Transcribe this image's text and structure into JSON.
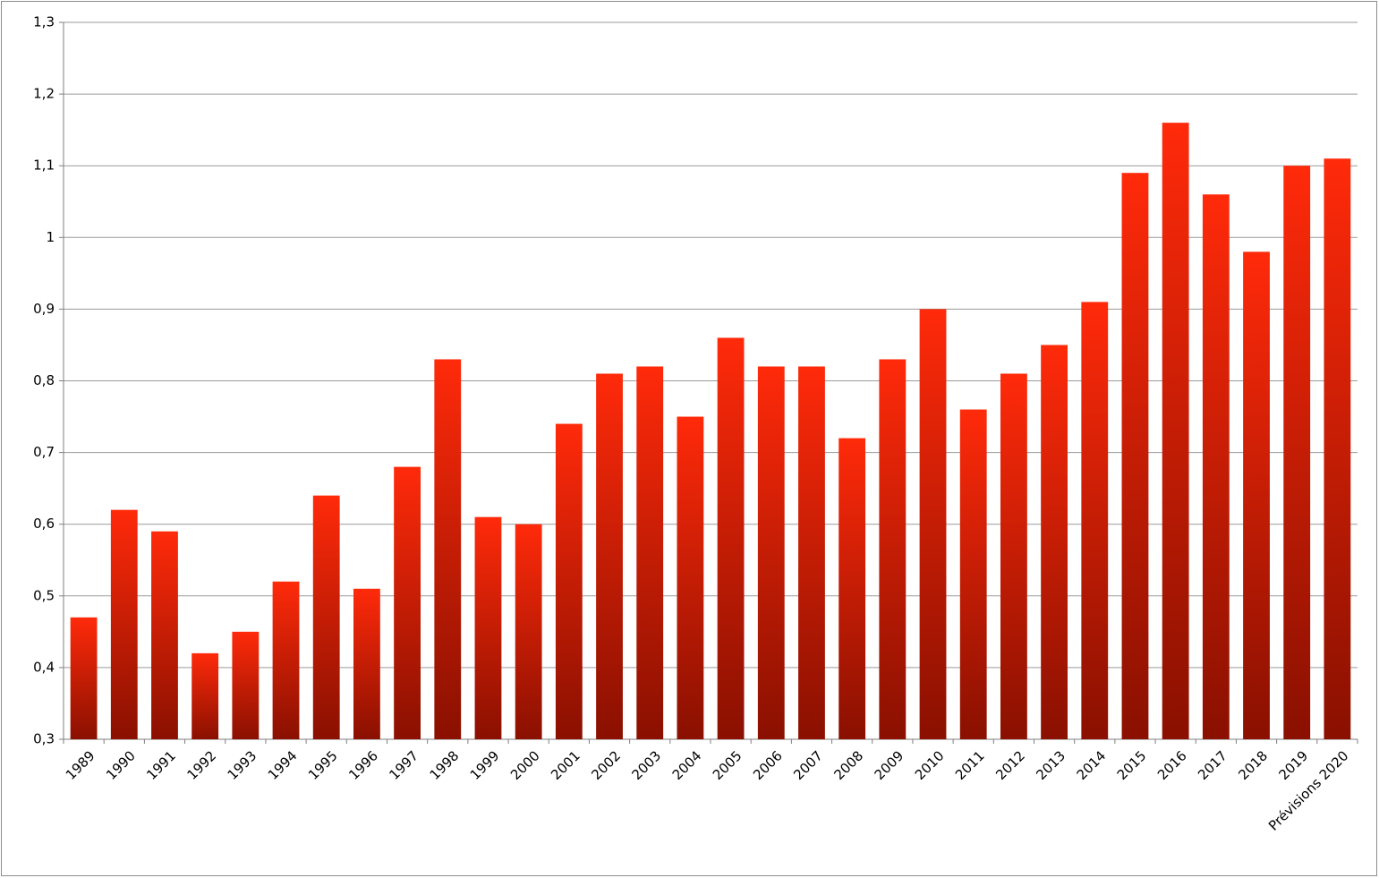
{
  "chart_data": {
    "type": "bar",
    "categories": [
      "1989",
      "1990",
      "1991",
      "1992",
      "1993",
      "1994",
      "1995",
      "1996",
      "1997",
      "1998",
      "1999",
      "2000",
      "2001",
      "2002",
      "2003",
      "2004",
      "2005",
      "2006",
      "2007",
      "2008",
      "2009",
      "2010",
      "2011",
      "2012",
      "2013",
      "2014",
      "2015",
      "2016",
      "2017",
      "2018",
      "2019",
      "Prévisions 2020"
    ],
    "values": [
      0.47,
      0.62,
      0.59,
      0.42,
      0.45,
      0.52,
      0.64,
      0.51,
      0.68,
      0.83,
      0.61,
      0.6,
      0.74,
      0.81,
      0.82,
      0.75,
      0.86,
      0.82,
      0.82,
      0.72,
      0.83,
      0.9,
      0.76,
      0.81,
      0.85,
      0.91,
      1.09,
      1.16,
      1.06,
      0.98,
      1.1,
      1.11
    ],
    "color": "#ff2a0a",
    "ylim": [
      0.3,
      1.3
    ],
    "yticks": [
      {
        "value": 0.3,
        "label": "0,3"
      },
      {
        "value": 0.4,
        "label": "0,4"
      },
      {
        "value": 0.5,
        "label": "0,5"
      },
      {
        "value": 0.6,
        "label": "0,6"
      },
      {
        "value": 0.7,
        "label": "0,7"
      },
      {
        "value": 0.8,
        "label": "0,8"
      },
      {
        "value": 0.9,
        "label": "0,9"
      },
      1,
      {
        "value": 1.1,
        "label": "1,1"
      },
      {
        "value": 1.2,
        "label": "1,2"
      },
      {
        "value": 1.3,
        "label": "1,3"
      }
    ],
    "grid": true
  }
}
